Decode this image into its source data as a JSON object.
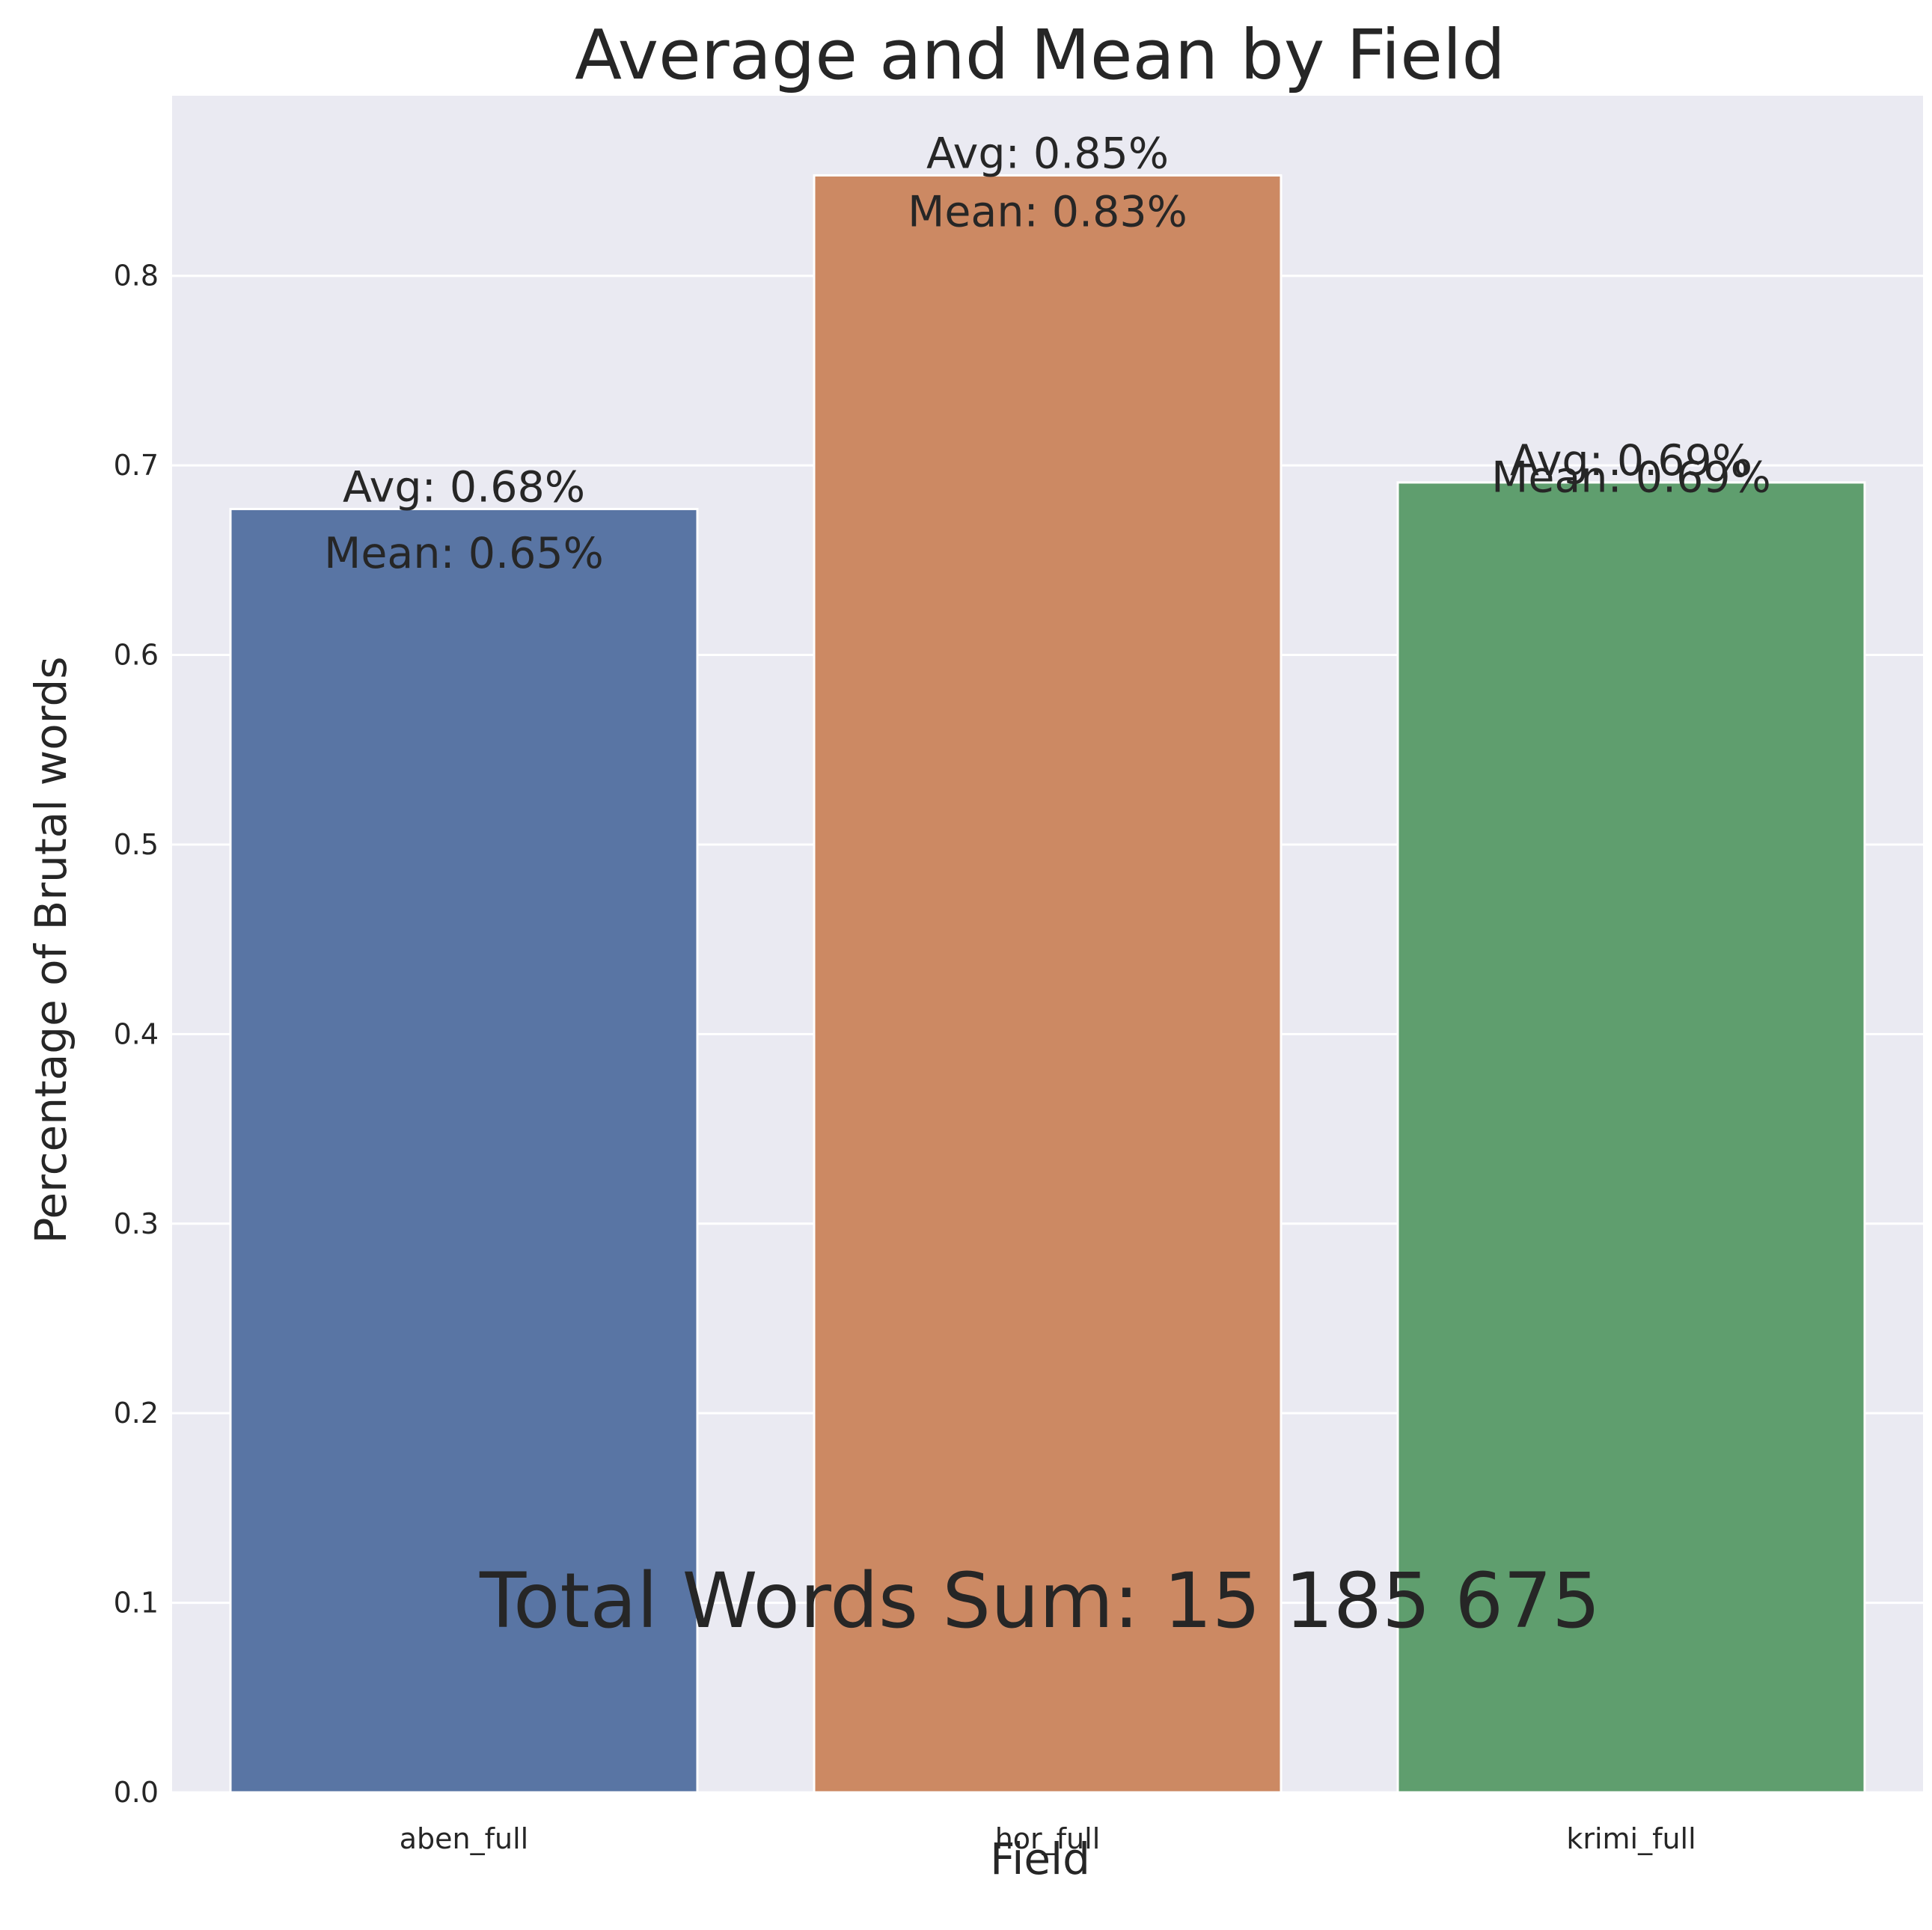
{
  "colors": {
    "background": "#eaeaf2",
    "grid": "#ffffff",
    "text": "#262626",
    "bars": [
      "#5975a4",
      "#cc8963",
      "#5f9e6e"
    ]
  },
  "chart_data": {
    "type": "bar",
    "title": "Average and Mean by Field",
    "xlabel": "Field",
    "ylabel": "Percentage of Brutal words",
    "categories": [
      "aben_full",
      "hor_full",
      "krimi_full"
    ],
    "values": [
      0.677,
      0.853,
      0.691
    ],
    "means": [
      0.65,
      0.83,
      0.69
    ],
    "avg_labels": [
      "Avg: 0.68%",
      "Avg: 0.85%",
      "Avg: 0.69%"
    ],
    "mean_labels": [
      "Mean: 0.65%",
      "Mean: 0.83%",
      "Mean: 0.69%"
    ],
    "ylim": [
      0,
      0.895
    ],
    "yticks": [
      0.0,
      0.1,
      0.2,
      0.3,
      0.4,
      0.5,
      0.6,
      0.7,
      0.8
    ],
    "ytick_labels": [
      "0.0",
      "0.1",
      "0.2",
      "0.3",
      "0.4",
      "0.5",
      "0.6",
      "0.7",
      "0.8"
    ],
    "grid": true,
    "annotation": "Total Words Sum: 15 185 675"
  }
}
